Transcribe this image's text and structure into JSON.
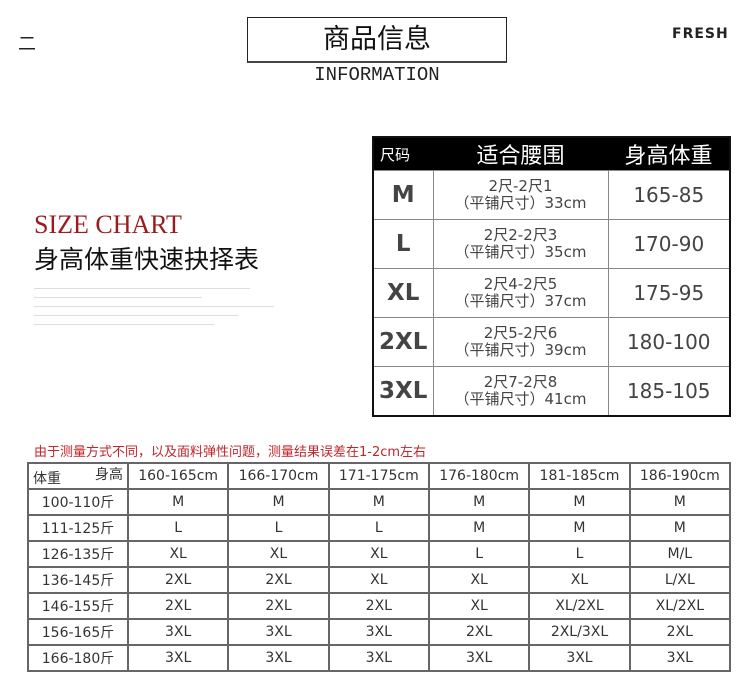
{
  "header": {
    "mark": "二",
    "title": "商品信息",
    "subtitle": "INFORMATION",
    "brand": "FRESH"
  },
  "size_chart": {
    "title_en": "SIZE CHART",
    "title_cn": "身高体重快速抉择表"
  },
  "size_table": {
    "headers": [
      "尺码",
      "适合腰围",
      "身高体重"
    ],
    "rows": [
      {
        "size": "M",
        "waist1": "2尺-2尺1",
        "waist2": "（平铺尺寸）33cm",
        "hw": "165-85"
      },
      {
        "size": "L",
        "waist1": "2尺2-2尺3",
        "waist2": "（平铺尺寸）35cm",
        "hw": "170-90"
      },
      {
        "size": "XL",
        "waist1": "2尺4-2尺5",
        "waist2": "（平铺尺寸）37cm",
        "hw": "175-95"
      },
      {
        "size": "2XL",
        "waist1": "2尺5-2尺6",
        "waist2": "（平铺尺寸）39cm",
        "hw": "180-100"
      },
      {
        "size": "3XL",
        "waist1": "2尺7-2尺8",
        "waist2": "（平铺尺寸）41cm",
        "hw": "185-105"
      }
    ]
  },
  "note": "由于测量方式不同，以及面料弹性问题，测量结果误差在1-2cm左右",
  "hw_table": {
    "corner_top": "身高",
    "corner_bottom": "体重",
    "heights": [
      "160-165cm",
      "166-170cm",
      "171-175cm",
      "176-180cm",
      "181-185cm",
      "186-190cm"
    ],
    "rows": [
      {
        "weight": "100-110斤",
        "cells": [
          "M",
          "M",
          "M",
          "M",
          "M",
          "M"
        ]
      },
      {
        "weight": "111-125斤",
        "cells": [
          "L",
          "L",
          "L",
          "M",
          "M",
          "M"
        ]
      },
      {
        "weight": "126-135斤",
        "cells": [
          "XL",
          "XL",
          "XL",
          "L",
          "L",
          "M/L"
        ]
      },
      {
        "weight": "136-145斤",
        "cells": [
          "2XL",
          "2XL",
          "XL",
          "XL",
          "XL",
          "L/XL"
        ]
      },
      {
        "weight": "146-155斤",
        "cells": [
          "2XL",
          "2XL",
          "2XL",
          "XL",
          "XL/2XL",
          "XL/2XL"
        ]
      },
      {
        "weight": "156-165斤",
        "cells": [
          "3XL",
          "3XL",
          "3XL",
          "2XL",
          "2XL/3XL",
          "2XL"
        ]
      },
      {
        "weight": "166-180斤",
        "cells": [
          "3XL",
          "3XL",
          "3XL",
          "3XL",
          "3XL",
          "3XL"
        ]
      }
    ]
  }
}
